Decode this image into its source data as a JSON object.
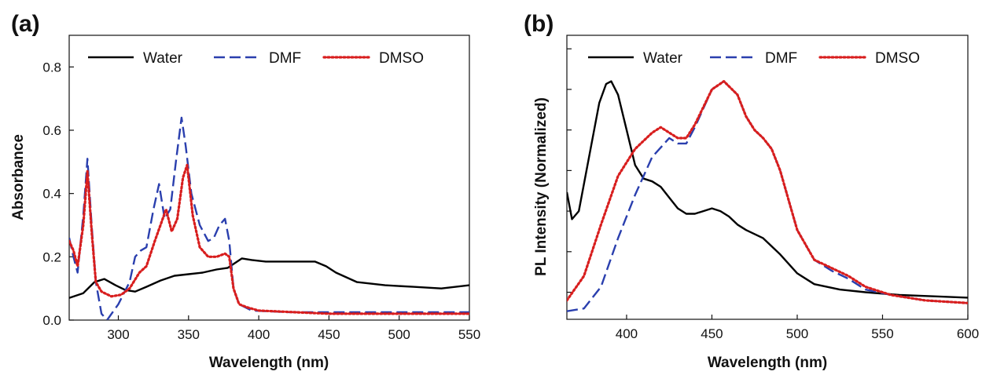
{
  "colors": {
    "Water": "#000000",
    "DMF": "#2a3fae",
    "DMSO": "#d81e1e"
  },
  "chart_data": [
    {
      "type": "line",
      "panel_label": "(a)",
      "xlabel": "Wavelength (nm)",
      "ylabel": "Absorbance",
      "xlim": [
        265,
        550
      ],
      "ylim": [
        0,
        0.9
      ],
      "xticks": [
        300,
        350,
        400,
        450,
        500,
        550
      ],
      "xtick_labels": [
        "300",
        "350",
        "400",
        "450",
        "500",
        "550"
      ],
      "yticks": [
        0,
        0.2,
        0.4,
        0.6,
        0.8
      ],
      "ytick_labels": [
        "0.0",
        "0.2",
        "0.4",
        "0.6",
        "0.8"
      ],
      "grid": false,
      "legend": {
        "placement": "top",
        "orientation": "horizontal"
      },
      "series": [
        {
          "name": "Water",
          "style": "solid",
          "color_key": "Water",
          "x": [
            265,
            275,
            283,
            290,
            298,
            305,
            312,
            320,
            330,
            340,
            350,
            360,
            370,
            378,
            383,
            388,
            395,
            405,
            420,
            440,
            448,
            455,
            470,
            490,
            510,
            530,
            550
          ],
          "y": [
            0.07,
            0.085,
            0.12,
            0.13,
            0.11,
            0.095,
            0.09,
            0.105,
            0.125,
            0.14,
            0.145,
            0.15,
            0.16,
            0.165,
            0.18,
            0.195,
            0.19,
            0.185,
            0.185,
            0.185,
            0.17,
            0.15,
            0.12,
            0.11,
            0.105,
            0.1,
            0.11
          ]
        },
        {
          "name": "DMF",
          "style": "dashed",
          "color_key": "DMF",
          "x": [
            265,
            268,
            271,
            275,
            278,
            281,
            284,
            288,
            292,
            300,
            308,
            312,
            316,
            320,
            325,
            329,
            333,
            337,
            341,
            345,
            348,
            352,
            358,
            364,
            368,
            372,
            376,
            379,
            382,
            386,
            395,
            420,
            450,
            500,
            550
          ],
          "y": [
            0.26,
            0.2,
            0.15,
            0.33,
            0.51,
            0.3,
            0.12,
            0.02,
            0.0,
            0.05,
            0.12,
            0.2,
            0.22,
            0.23,
            0.35,
            0.43,
            0.32,
            0.35,
            0.5,
            0.64,
            0.55,
            0.4,
            0.3,
            0.25,
            0.26,
            0.3,
            0.32,
            0.25,
            0.1,
            0.05,
            0.03,
            0.025,
            0.025,
            0.025,
            0.025
          ]
        },
        {
          "name": "DMSO",
          "style": "dotted",
          "color_key": "DMSO",
          "x": [
            265,
            268,
            271,
            275,
            278,
            281,
            284,
            288,
            295,
            302,
            308,
            315,
            320,
            326,
            330,
            334,
            338,
            342,
            346,
            349,
            353,
            358,
            364,
            370,
            376,
            379,
            382,
            386,
            392,
            400,
            450,
            500,
            550
          ],
          "y": [
            0.25,
            0.22,
            0.17,
            0.3,
            0.47,
            0.28,
            0.12,
            0.09,
            0.075,
            0.08,
            0.1,
            0.15,
            0.17,
            0.25,
            0.3,
            0.35,
            0.28,
            0.32,
            0.45,
            0.49,
            0.33,
            0.23,
            0.2,
            0.2,
            0.21,
            0.2,
            0.1,
            0.05,
            0.04,
            0.03,
            0.02,
            0.02,
            0.02
          ]
        }
      ]
    },
    {
      "type": "line",
      "panel_label": "(b)",
      "xlabel": "Wavelength (nm)",
      "ylabel": "PL Intensity (Normalized)",
      "xlim": [
        365,
        600
      ],
      "ylim": [
        0,
        1.05
      ],
      "xticks": [
        400,
        450,
        500,
        550,
        600
      ],
      "xtick_labels": [
        "400",
        "450",
        "500",
        "550",
        "600"
      ],
      "yticks": [
        0.1,
        0.25,
        0.4,
        0.55,
        0.7,
        0.85,
        1.0
      ],
      "ytick_labels": [],
      "grid": false,
      "legend": {
        "placement": "top",
        "orientation": "horizontal"
      },
      "series": [
        {
          "name": "Water",
          "style": "solid",
          "color_key": "Water",
          "x": [
            365,
            368,
            372,
            378,
            384,
            388,
            391,
            395,
            400,
            405,
            410,
            415,
            420,
            425,
            430,
            435,
            440,
            445,
            450,
            455,
            460,
            465,
            470,
            480,
            490,
            500,
            510,
            525,
            540,
            560,
            580,
            600
          ],
          "y": [
            0.47,
            0.37,
            0.4,
            0.6,
            0.8,
            0.87,
            0.88,
            0.83,
            0.7,
            0.57,
            0.52,
            0.51,
            0.49,
            0.45,
            0.41,
            0.39,
            0.39,
            0.4,
            0.41,
            0.4,
            0.38,
            0.35,
            0.33,
            0.3,
            0.24,
            0.17,
            0.13,
            0.11,
            0.1,
            0.09,
            0.085,
            0.08
          ]
        },
        {
          "name": "DMF",
          "style": "dashed",
          "color_key": "DMF",
          "x": [
            365,
            375,
            385,
            395,
            405,
            415,
            425,
            430,
            435,
            440,
            450,
            457,
            465,
            470,
            475,
            480,
            485,
            490,
            495,
            500,
            510,
            520,
            530,
            540,
            555,
            575,
            600
          ],
          "y": [
            0.03,
            0.04,
            0.12,
            0.3,
            0.46,
            0.6,
            0.67,
            0.65,
            0.65,
            0.71,
            0.85,
            0.88,
            0.83,
            0.75,
            0.7,
            0.67,
            0.63,
            0.55,
            0.44,
            0.33,
            0.22,
            0.18,
            0.15,
            0.11,
            0.09,
            0.07,
            0.06
          ]
        },
        {
          "name": "DMSO",
          "style": "dotted",
          "color_key": "DMSO",
          "x": [
            365,
            375,
            385,
            395,
            405,
            415,
            420,
            425,
            430,
            435,
            440,
            450,
            457,
            465,
            470,
            475,
            480,
            485,
            490,
            495,
            500,
            510,
            520,
            530,
            540,
            555,
            575,
            600
          ],
          "y": [
            0.07,
            0.16,
            0.35,
            0.53,
            0.63,
            0.69,
            0.71,
            0.69,
            0.67,
            0.67,
            0.72,
            0.85,
            0.88,
            0.83,
            0.75,
            0.7,
            0.67,
            0.63,
            0.55,
            0.44,
            0.33,
            0.22,
            0.19,
            0.16,
            0.12,
            0.09,
            0.07,
            0.06
          ]
        }
      ]
    }
  ]
}
